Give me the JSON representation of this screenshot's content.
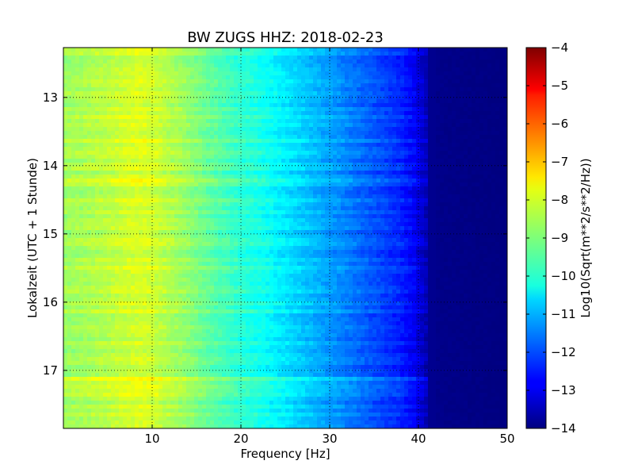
{
  "chart_data": {
    "type": "heatmap",
    "title": "BW ZUGS HHZ: 2018-02-23",
    "xlabel": "Frequency [Hz]",
    "ylabel": "Lokalzeit (UTC + 1 Stunde)",
    "xlim": [
      0,
      50
    ],
    "ylim": [
      12.27,
      17.85
    ],
    "y_inverted": true,
    "xticks": [
      10,
      20,
      30,
      40,
      50
    ],
    "yticks": [
      13,
      14,
      15,
      16,
      17
    ],
    "grid": true,
    "colormap": "jet",
    "colorbar": {
      "label": "Log10(Sqrt(m**2/s**2/Hz))",
      "range": [
        -14,
        -4
      ],
      "ticks": [
        -4,
        -5,
        -6,
        -7,
        -8,
        -9,
        -10,
        -11,
        -12,
        -13,
        -14
      ]
    },
    "spectrum_profile": {
      "frequency_hz": [
        0,
        2,
        5,
        7,
        8.5,
        10,
        12,
        14,
        16,
        18,
        20,
        22,
        24,
        26,
        28,
        30,
        32,
        34,
        36,
        38,
        39.5,
        41,
        42,
        50
      ],
      "log10_amplitude": [
        -8.7,
        -8.6,
        -8.4,
        -8.2,
        -8.1,
        -8.2,
        -8.5,
        -8.8,
        -9.2,
        -9.5,
        -9.8,
        -10.0,
        -10.3,
        -10.6,
        -10.9,
        -11.2,
        -11.5,
        -11.8,
        -12.1,
        -12.4,
        -12.8,
        -13.5,
        -13.9,
        -14.0
      ]
    }
  }
}
